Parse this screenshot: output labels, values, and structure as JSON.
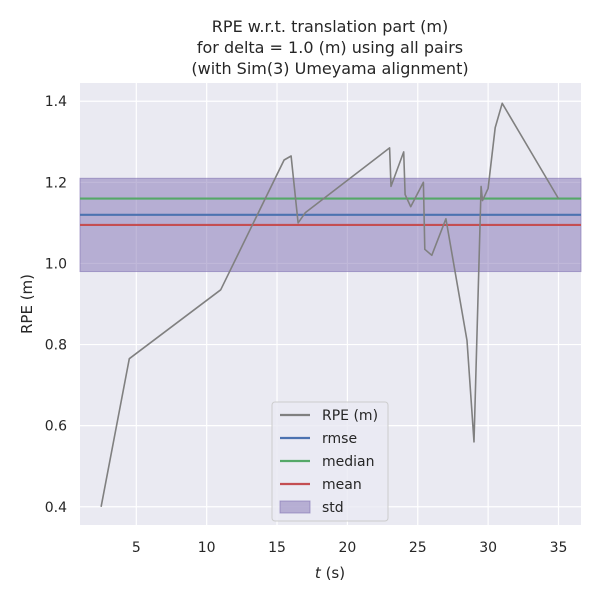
{
  "chart_data": {
    "type": "line",
    "title": [
      "RPE w.r.t. translation part (m)",
      "for delta = 1.0 (m) using all pairs",
      "(with Sim(3) Umeyama alignment)"
    ],
    "xlabel": "",
    "xlabel_italic": "t",
    "xlabel_suffix": " (s)",
    "ylabel": "RPE (m)",
    "xlim": [
      1.0,
      36.6
    ],
    "ylim": [
      0.355,
      1.445
    ],
    "xticks": [
      5,
      10,
      15,
      20,
      25,
      30,
      35
    ],
    "yticks": [
      0.4,
      0.6,
      0.8,
      1.0,
      1.2,
      1.4
    ],
    "xtick_labels": [
      "5",
      "10",
      "15",
      "20",
      "25",
      "30",
      "35"
    ],
    "ytick_labels": [
      "0.4",
      "0.6",
      "0.8",
      "1.0",
      "1.2",
      "1.4"
    ],
    "grid": true,
    "legend_position": "lower-center",
    "series": [
      {
        "name": "RPE (m)",
        "color": "#808080",
        "x": [
          2.5,
          4.5,
          11.0,
          15.5,
          16.0,
          16.5,
          17.0,
          23.0,
          23.1,
          24.0,
          24.1,
          24.5,
          25.4,
          25.5,
          26.0,
          27.0,
          28.5,
          29.0,
          29.5,
          29.6,
          30.0,
          30.5,
          31.0,
          35.0
        ],
        "y": [
          0.4,
          0.765,
          0.935,
          1.255,
          1.265,
          1.1,
          1.125,
          1.285,
          1.19,
          1.275,
          1.17,
          1.14,
          1.2,
          1.035,
          1.02,
          1.11,
          0.81,
          0.56,
          1.19,
          1.155,
          1.185,
          1.335,
          1.395,
          1.16
        ]
      }
    ],
    "stats": [
      {
        "name": "rmse",
        "value": 1.12,
        "color": "#4c72b0"
      },
      {
        "name": "median",
        "value": 1.16,
        "color": "#55a868"
      },
      {
        "name": "mean",
        "value": 1.095,
        "color": "#c44e52"
      }
    ],
    "std_band": {
      "name": "std",
      "low": 0.98,
      "high": 1.21,
      "color": "#8172b3"
    }
  }
}
